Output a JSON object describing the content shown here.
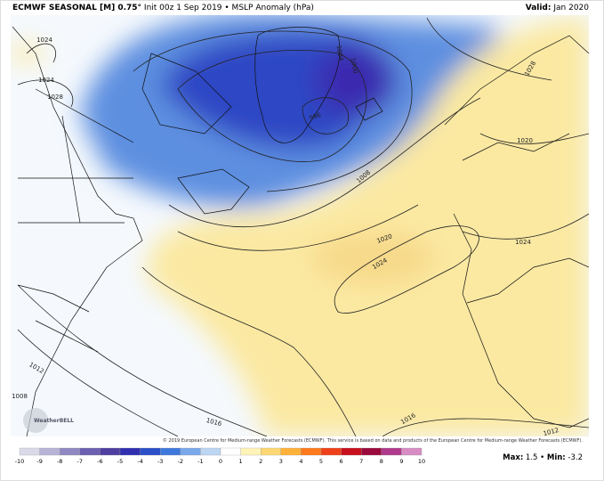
{
  "header": {
    "model": "ECMWF SEASONAL [M] 0.75°",
    "info": "Init 00z 1 Sep 2019 • MSLP Anomaly (hPa)",
    "valid_label": "Valid:",
    "valid": "Jan 2020"
  },
  "contour_labels": [
    1024,
    1024,
    1028,
    1004,
    1000,
    996,
    1008,
    1020,
    1024,
    1020,
    1024,
    1028,
    1012,
    1008,
    1016,
    1016,
    1012
  ],
  "watermark": "WeatherBELL",
  "copyright": "© 2019 European Centre for Medium-range Weather Forecasts (ECMWF). This service is based on data and products of the European Centre for Medium-range Weather Forecasts (ECMWF).",
  "colorbar": {
    "labels": [
      -10,
      -9,
      -8,
      -7,
      -6,
      -5,
      -4,
      -3,
      -2,
      -1,
      0,
      1,
      2,
      3,
      4,
      5,
      6,
      7,
      8,
      9,
      10
    ],
    "colors": [
      "#d9d9e8",
      "#b7b3d6",
      "#8f88c2",
      "#6a5fb0",
      "#4f3fa0",
      "#2f2fb0",
      "#2b50c8",
      "#3f78dc",
      "#7aa8ea",
      "#bcd6f4",
      "#ffffff",
      "#fff3b8",
      "#ffd873",
      "#ffb13a",
      "#ff7a1c",
      "#f0401a",
      "#c8101e",
      "#9a0a3c",
      "#b03a8c",
      "#d78cc4"
    ]
  },
  "stats": {
    "max_label": "Max:",
    "max": 1.5,
    "sep": "•",
    "min_label": "Min:",
    "min": -3.2
  }
}
